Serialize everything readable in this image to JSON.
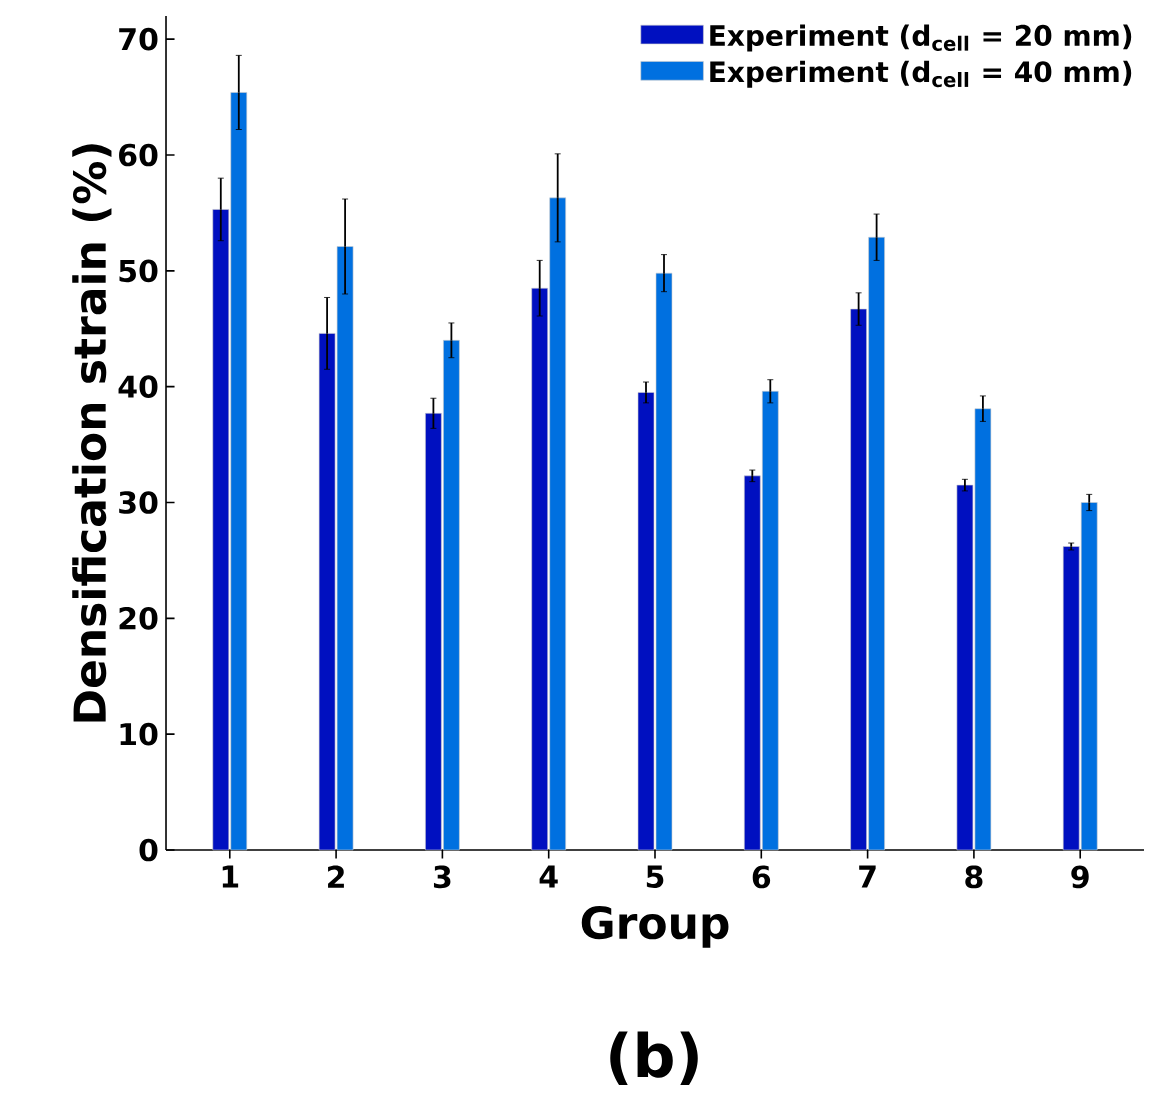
{
  "chart_data": {
    "type": "bar",
    "xlabel": "Group",
    "ylabel": "Densification strain (%)",
    "categories": [
      "1",
      "2",
      "3",
      "4",
      "5",
      "6",
      "7",
      "8",
      "9"
    ],
    "series": [
      {
        "name": "Experiment (d$_{cell}$ = 20 mm)",
        "color": "#0010c0",
        "values": [
          55.3,
          44.6,
          37.7,
          48.5,
          39.5,
          32.3,
          46.7,
          31.5,
          26.2
        ],
        "errors": [
          2.7,
          3.1,
          1.3,
          2.4,
          0.9,
          0.5,
          1.4,
          0.5,
          0.3
        ]
      },
      {
        "name": "Experiment (d$_{cell}$ = 40 mm)",
        "color": "#0070e0",
        "values": [
          65.4,
          52.1,
          44.0,
          56.3,
          49.8,
          39.6,
          52.9,
          38.1,
          30.0
        ],
        "errors": [
          3.2,
          4.1,
          1.5,
          3.8,
          1.6,
          1.0,
          2.0,
          1.1,
          0.7
        ]
      }
    ],
    "ylim": [
      0,
      72
    ],
    "yticks": [
      0,
      10,
      20,
      30,
      40,
      50,
      60,
      70
    ],
    "legend": "top right",
    "annotations": [
      "(b)"
    ]
  }
}
